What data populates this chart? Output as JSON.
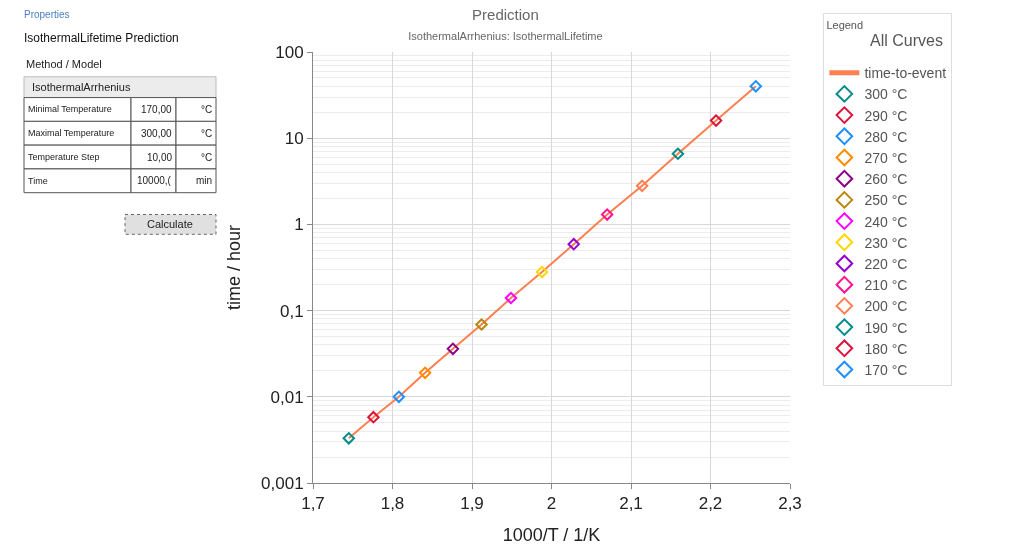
{
  "chart_data": {
    "type": "scatter",
    "title": "Prediction",
    "subtitle": "IsothermalArrhenius: IsothermalLifetime",
    "xlabel": "1000/T / 1/K",
    "ylabel": "time / hour",
    "legend_title": "Legend",
    "series": [
      {
        "name": "time-to-event",
        "type": "line",
        "color": "#ff7f50",
        "marker": "none",
        "x": [
          1.745,
          1.776,
          1.808,
          1.841,
          1.876,
          1.912,
          1.949,
          1.988,
          2.028,
          2.07,
          2.114,
          2.159,
          2.207,
          2.257
        ],
        "values": [
          0.0033,
          0.0058,
          0.01,
          0.019,
          0.036,
          0.069,
          0.14,
          0.28,
          0.59,
          1.3,
          2.8,
          6.6,
          16,
          40
        ]
      },
      {
        "name": "300 °C",
        "color": "#008b8b",
        "x": [
          1.745
        ],
        "values": [
          0.0033
        ]
      },
      {
        "name": "290 °C",
        "color": "#dc143c",
        "x": [
          1.776
        ],
        "values": [
          0.0058
        ]
      },
      {
        "name": "280 °C",
        "color": "#1e90ff",
        "x": [
          1.808
        ],
        "values": [
          0.01
        ]
      },
      {
        "name": "270 °C",
        "color": "#ff8c00",
        "x": [
          1.841
        ],
        "values": [
          0.019
        ]
      },
      {
        "name": "260 °C",
        "color": "#8b008b",
        "x": [
          1.876
        ],
        "values": [
          0.036
        ]
      },
      {
        "name": "250 °C",
        "color": "#b8860b",
        "x": [
          1.912
        ],
        "values": [
          0.069
        ]
      },
      {
        "name": "240 °C",
        "color": "#ff00ff",
        "x": [
          1.949
        ],
        "values": [
          0.14
        ]
      },
      {
        "name": "230 °C",
        "color": "#ffd700",
        "x": [
          1.988
        ],
        "values": [
          0.28
        ]
      },
      {
        "name": "220 °C",
        "color": "#9400d3",
        "x": [
          2.028
        ],
        "values": [
          0.59
        ]
      },
      {
        "name": "210 °C",
        "color": "#ff1493",
        "x": [
          2.07
        ],
        "values": [
          1.3
        ]
      },
      {
        "name": "200 °C",
        "color": "#ff7f50",
        "x": [
          2.114
        ],
        "values": [
          2.8
        ]
      },
      {
        "name": "190 °C",
        "color": "#008b8b",
        "x": [
          2.159
        ],
        "values": [
          6.6
        ]
      },
      {
        "name": "180 °C",
        "color": "#dc143c",
        "x": [
          2.207
        ],
        "values": [
          16
        ]
      },
      {
        "name": "170 °C",
        "color": "#1e90ff",
        "x": [
          2.257
        ],
        "values": [
          40
        ]
      }
    ],
    "marker": "diamond",
    "log": "y",
    "grid": true,
    "legend": "top right",
    "xlim": [
      1.7,
      2.3
    ],
    "xticks": [
      {
        "value": 1.7,
        "label": "1,7"
      },
      {
        "value": 1.8,
        "label": "1,8"
      },
      {
        "value": 1.9,
        "label": "1,9"
      },
      2,
      {
        "value": 2.1,
        "label": "2,1"
      },
      {
        "value": 2.2,
        "label": "2,2"
      },
      {
        "value": 2.3,
        "label": "2,3"
      }
    ],
    "ylim": [
      0.001,
      100
    ],
    "yticks": [
      {
        "value": 0.001,
        "label": "0,001"
      },
      {
        "value": 0.01,
        "label": "0,01"
      },
      {
        "value": 0.1,
        "label": "0,1"
      },
      1,
      10,
      100
    ],
    "annotations": [
      "All Curves",
      "Properties",
      "IsothermalLifetime Prediction",
      "Method / Model",
      "IsothermalArrhenius",
      "Minimal Temperature",
      "170,00",
      "°C",
      "Maximal Temperature",
      "300,00",
      "°C",
      "Temperature Step",
      "10,00",
      "°C",
      "Time",
      "10000,(",
      "min",
      "Calculate"
    ]
  }
}
